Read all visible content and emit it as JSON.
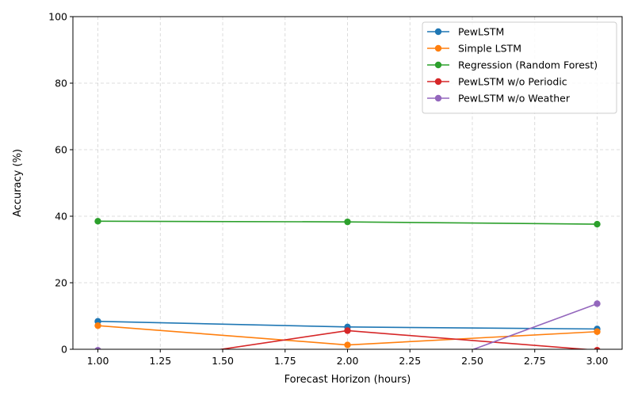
{
  "chart_data": {
    "type": "line",
    "xlabel": "Forecast Horizon (hours)",
    "ylabel": "Accuracy (%)",
    "xlim": [
      0.9,
      3.1
    ],
    "ylim": [
      0,
      100
    ],
    "xticks": [
      1.0,
      1.25,
      1.5,
      1.75,
      2.0,
      2.25,
      2.5,
      2.75,
      3.0
    ],
    "xtick_labels": [
      "1.00",
      "1.25",
      "1.50",
      "1.75",
      "2.00",
      "2.25",
      "2.50",
      "2.75",
      "3.00"
    ],
    "yticks": [
      0,
      20,
      40,
      60,
      80,
      100
    ],
    "ytick_labels": [
      "0",
      "20",
      "40",
      "60",
      "80",
      "100"
    ],
    "grid": true,
    "legend_position": "top-right",
    "x": [
      1,
      2,
      3
    ],
    "series": [
      {
        "name": "PewLSTM",
        "color": "#1f77b4",
        "values": [
          8.4,
          6.7,
          6.1
        ]
      },
      {
        "name": "Simple LSTM",
        "color": "#ff7f0e",
        "values": [
          7.1,
          1.3,
          5.3
        ]
      },
      {
        "name": "Regression (Random Forest)",
        "color": "#2ca02c",
        "values": [
          38.5,
          38.3,
          37.6
        ]
      },
      {
        "name": "PewLSTM w/o Periodic",
        "color": "#d62728",
        "values": [
          -5.5,
          5.6,
          -0.3
        ]
      },
      {
        "name": "PewLSTM w/o Weather",
        "color": "#9467bd",
        "values": [
          -0.3,
          -14.0,
          13.7
        ]
      }
    ]
  }
}
